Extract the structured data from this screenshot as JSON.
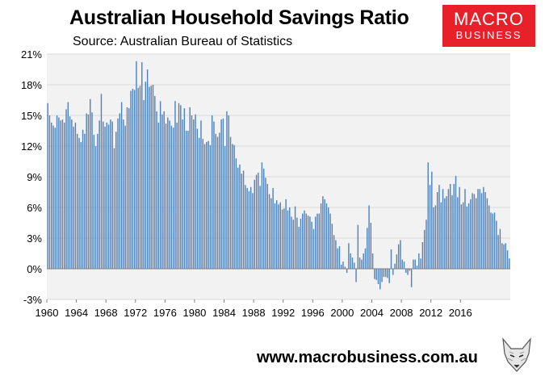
{
  "header": {
    "title": "Australian Household Savings Ratio",
    "subtitle": "Source: Australian Bureau of Statistics"
  },
  "logo": {
    "line1": "MACRO",
    "line2": "BUSINESS"
  },
  "footer": {
    "url": "www.macrobusiness.com.au",
    "icon": "fox-icon"
  },
  "colors": {
    "bar": "#4f81bd",
    "plot_bg": "#f2f2f2",
    "grid": "#d9d9d9",
    "logo_bg": "#e8202a"
  },
  "chart_data": {
    "type": "bar",
    "title": "Australian Household Savings Ratio",
    "subtitle": "Source: Australian Bureau of Statistics",
    "xlabel": "",
    "ylabel": "",
    "frequency": "quarterly",
    "start": "1960-Q1",
    "ylim": [
      -3,
      21
    ],
    "yticks": [
      "-3%",
      "0%",
      "3%",
      "6%",
      "9%",
      "12%",
      "15%",
      "18%",
      "21%"
    ],
    "xticks": [
      "1960",
      "1964",
      "1968",
      "1972",
      "1976",
      "1980",
      "1984",
      "1988",
      "1992",
      "1996",
      "2000",
      "2004",
      "2008",
      "2012",
      "2016"
    ],
    "grid": true,
    "legend": "none",
    "series": [
      {
        "values": [
          16.2,
          15.0,
          14.3,
          14.0,
          13.8,
          15.0,
          14.8,
          14.5,
          14.6,
          14.3,
          15.6,
          16.3,
          14.9,
          14.6,
          13.9,
          14.3,
          13.2,
          12.8,
          12.4,
          13.6,
          13.2,
          15.2,
          15.1,
          16.6,
          15.3,
          13.1,
          12.0,
          13.2,
          14.5,
          17.1,
          14.4,
          13.9,
          14.3,
          14.1,
          14.6,
          14.4,
          11.8,
          13.4,
          14.7,
          15.2,
          16.3,
          14.6,
          14.0,
          15.8,
          15.7,
          17.4,
          17.6,
          17.5,
          20.3,
          17.7,
          17.9,
          20.2,
          16.5,
          18.3,
          19.5,
          17.8,
          17.9,
          18.0,
          16.9,
          15.4,
          14.3,
          16.4,
          15.1,
          15.4,
          14.2,
          14.8,
          14.5,
          14.0,
          13.8,
          16.4,
          14.3,
          16.2,
          16.0,
          14.6,
          15.7,
          13.5,
          13.5,
          15.8,
          15.0,
          14.6,
          15.1,
          13.7,
          12.8,
          14.5,
          12.7,
          12.2,
          12.4,
          12.5,
          12.1,
          15.0,
          14.4,
          13.2,
          12.9,
          13.3,
          14.6,
          14.7,
          12.0,
          15.4,
          15.0,
          12.9,
          12.2,
          12.1,
          10.8,
          9.9,
          10.2,
          9.3,
          9.6,
          8.2,
          7.9,
          7.6,
          8.0,
          7.4,
          8.7,
          9.2,
          9.4,
          8.1,
          10.4,
          9.8,
          8.9,
          8.3,
          7.3,
          6.9,
          7.9,
          6.4,
          6.7,
          6.3,
          6.5,
          5.8,
          5.9,
          6.8,
          5.7,
          6.0,
          5.1,
          4.8,
          6.1,
          5.0,
          4.1,
          4.9,
          5.4,
          5.7,
          5.4,
          5.2,
          5.1,
          4.6,
          3.9,
          5.1,
          5.4,
          5.4,
          6.4,
          7.1,
          6.8,
          6.4,
          6.0,
          5.4,
          4.4,
          3.3,
          2.8,
          2.0,
          2.2,
          0.4,
          0.7,
          0.2,
          -0.4,
          2.5,
          1.5,
          1.1,
          0.6,
          -1.3,
          4.3,
          1.1,
          0.9,
          1.5,
          2.0,
          4.0,
          6.2,
          4.5,
          1.5,
          -1.0,
          -1.1,
          -1.5,
          -2.0,
          -1.3,
          -0.8,
          -0.8,
          -0.9,
          -1.4,
          1.9,
          -0.6,
          0.5,
          1.4,
          2.4,
          2.8,
          0.9,
          0.7,
          -0.4,
          -0.6,
          -0.2,
          -1.8,
          0.9,
          0.9,
          0.3,
          1.5,
          1.0,
          2.6,
          3.8,
          4.8,
          10.4,
          8.2,
          9.5,
          6.0,
          6.2,
          7.5,
          8.2,
          6.5,
          7.8,
          6.9,
          7.1,
          7.8,
          8.3,
          7.2,
          8.3,
          9.1,
          7.0,
          8.0,
          6.3,
          6.5,
          7.8,
          6.1,
          6.4,
          6.8,
          7.4,
          7.3,
          6.9,
          7.8,
          7.8,
          7.4,
          8.0,
          7.5,
          6.9,
          6.2,
          5.5,
          5.4,
          5.5,
          4.7,
          3.3,
          3.9,
          2.5,
          2.4,
          2.5,
          1.8,
          1.0
        ]
      }
    ]
  }
}
